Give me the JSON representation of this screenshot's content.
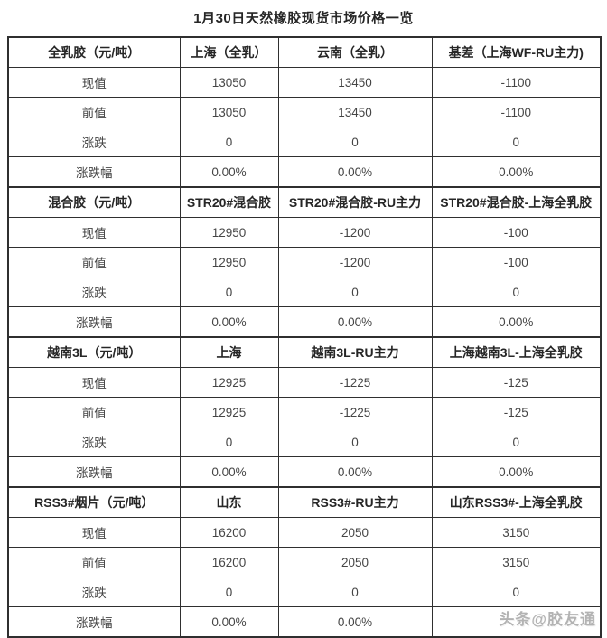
{
  "title": "1月30日天然橡胶现货市场价格一览",
  "watermark": "头条@胶友通",
  "border_color": "#2f2f2f",
  "table": {
    "row_labels": [
      "现值",
      "前值",
      "涨跌",
      "涨跌幅"
    ],
    "sections": [
      {
        "headers": [
          "全乳胶（元/吨）",
          "上海（全乳）",
          "云南（全乳）",
          "基差（上海WF-RU主力)"
        ],
        "rows": [
          [
            "现值",
            "13050",
            "13450",
            "-1100"
          ],
          [
            "前值",
            "13050",
            "13450",
            "-1100"
          ],
          [
            "涨跌",
            "0",
            "0",
            "0"
          ],
          [
            "涨跌幅",
            "0.00%",
            "0.00%",
            "0.00%"
          ]
        ]
      },
      {
        "headers": [
          "混合胶（元/吨）",
          "STR20#混合胶",
          "STR20#混合胶-RU主力",
          "STR20#混合胶-上海全乳胶"
        ],
        "rows": [
          [
            "现值",
            "12950",
            "-1200",
            "-100"
          ],
          [
            "前值",
            "12950",
            "-1200",
            "-100"
          ],
          [
            "涨跌",
            "0",
            "0",
            "0"
          ],
          [
            "涨跌幅",
            "0.00%",
            "0.00%",
            "0.00%"
          ]
        ]
      },
      {
        "headers": [
          "越南3L（元/吨）",
          "上海",
          "越南3L-RU主力",
          "上海越南3L-上海全乳胶"
        ],
        "rows": [
          [
            "现值",
            "12925",
            "-1225",
            "-125"
          ],
          [
            "前值",
            "12925",
            "-1225",
            "-125"
          ],
          [
            "涨跌",
            "0",
            "0",
            "0"
          ],
          [
            "涨跌幅",
            "0.00%",
            "0.00%",
            "0.00%"
          ]
        ]
      },
      {
        "headers": [
          "RSS3#烟片（元/吨）",
          "山东",
          "RSS3#-RU主力",
          "山东RSS3#-上海全乳胶"
        ],
        "rows": [
          [
            "现值",
            "16200",
            "2050",
            "3150"
          ],
          [
            "前值",
            "16200",
            "2050",
            "3150"
          ],
          [
            "涨跌",
            "0",
            "0",
            "0"
          ],
          [
            "涨跌幅",
            "0.00%",
            "0.00%",
            ""
          ]
        ]
      }
    ]
  }
}
